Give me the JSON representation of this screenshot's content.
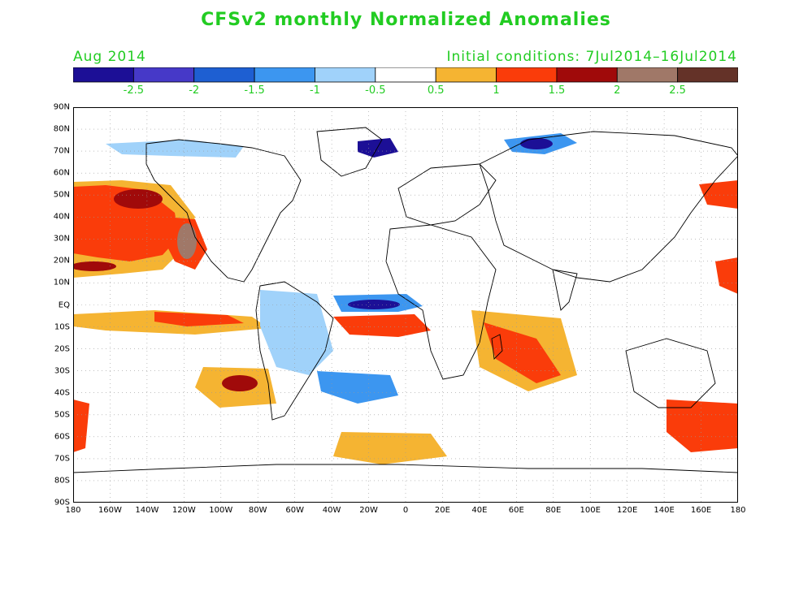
{
  "title": "CFSv2 monthly Normalized Anomalies",
  "month_label": "Aug 2014",
  "initial_conditions": "Initial conditions: 7Jul2014–16Jul2014",
  "text_color": "#22cc22",
  "colorbar": {
    "colors": [
      "#1c0f96",
      "#4639c8",
      "#1e5fd2",
      "#3c96f0",
      "#a0d2fa",
      "#ffffff",
      "#f5b432",
      "#fa3c0a",
      "#a00a0a",
      "#a07868",
      "#643228"
    ],
    "labels": [
      "-2.5",
      "-2",
      "-1.5",
      "-1",
      "-0.5",
      "0.5",
      "1",
      "1.5",
      "2",
      "2.5"
    ]
  },
  "map": {
    "lat_labels": [
      "90N",
      "80N",
      "70N",
      "60N",
      "50N",
      "40N",
      "30N",
      "20N",
      "10N",
      "EQ",
      "10S",
      "20S",
      "30S",
      "40S",
      "50S",
      "60S",
      "70S",
      "80S",
      "90S"
    ],
    "lon_labels": [
      "180",
      "160W",
      "140W",
      "120W",
      "100W",
      "80W",
      "60W",
      "40W",
      "20W",
      "0",
      "20E",
      "40E",
      "60E",
      "80E",
      "100E",
      "120E",
      "140E",
      "160E",
      "180"
    ]
  }
}
